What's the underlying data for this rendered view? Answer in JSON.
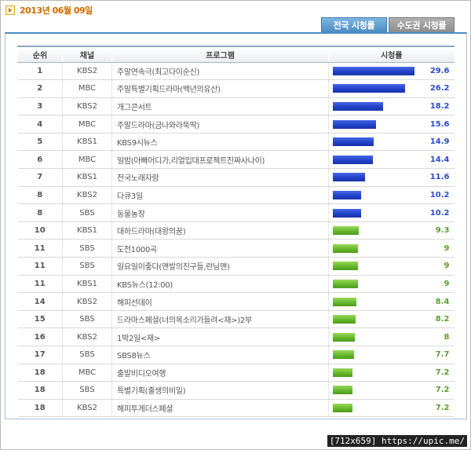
{
  "date_label": "2013년 06월 09일",
  "tabs": [
    {
      "label": "전국 시청률",
      "active": true
    },
    {
      "label": "수도권 시청률",
      "active": false
    }
  ],
  "table": {
    "headers": [
      "순위",
      "채널",
      "프로그램",
      "시청률"
    ],
    "max_rating": 29.6,
    "colors": {
      "top_bar": "#2a45cf",
      "rest_bar": "#62b52a",
      "top_text": "#2a4bcf",
      "rest_text": "#5aa12a"
    },
    "rows": [
      {
        "rank": "1",
        "channel": "KBS2",
        "program": "주말연속극(최고다이순신)",
        "rating": 29.6,
        "color": "blue"
      },
      {
        "rank": "2",
        "channel": "MBC",
        "program": "주말특별기획드라마(백년의유산)",
        "rating": 26.2,
        "color": "blue"
      },
      {
        "rank": "3",
        "channel": "KBS2",
        "program": "개그콘서트",
        "rating": 18.2,
        "color": "blue"
      },
      {
        "rank": "4",
        "channel": "MBC",
        "program": "주말드라마(금나와라뚝딱)",
        "rating": 15.6,
        "color": "blue"
      },
      {
        "rank": "5",
        "channel": "KBS1",
        "program": "KBS9시뉴스",
        "rating": 14.9,
        "color": "blue"
      },
      {
        "rank": "6",
        "channel": "MBC",
        "program": "일밤(아빠어디가,리얼입대프로젝트진짜사나이)",
        "rating": 14.4,
        "color": "blue"
      },
      {
        "rank": "7",
        "channel": "KBS1",
        "program": "전국노래자랑",
        "rating": 11.6,
        "color": "blue"
      },
      {
        "rank": "8",
        "channel": "KBS2",
        "program": "다큐3일",
        "rating": 10.2,
        "color": "blue"
      },
      {
        "rank": "8",
        "channel": "SBS",
        "program": "동물농장",
        "rating": 10.2,
        "color": "blue"
      },
      {
        "rank": "10",
        "channel": "KBS1",
        "program": "대하드라마(대왕의꿈)",
        "rating": 9.3,
        "color": "green"
      },
      {
        "rank": "11",
        "channel": "SBS",
        "program": "도전1000곡",
        "rating": 9,
        "color": "green"
      },
      {
        "rank": "11",
        "channel": "SBS",
        "program": "일요일이좋다(맨발의친구들,런닝맨)",
        "rating": 9,
        "color": "green"
      },
      {
        "rank": "11",
        "channel": "KBS1",
        "program": "KBS뉴스(12:00)",
        "rating": 9,
        "color": "green"
      },
      {
        "rank": "14",
        "channel": "KBS2",
        "program": "해피선데이",
        "rating": 8.4,
        "color": "green"
      },
      {
        "rank": "15",
        "channel": "SBS",
        "program": "드라마스페셜(너의목소리가들려<재>)2부",
        "rating": 8.2,
        "color": "green"
      },
      {
        "rank": "16",
        "channel": "KBS2",
        "program": "1박2일<재>",
        "rating": 8,
        "color": "green"
      },
      {
        "rank": "17",
        "channel": "SBS",
        "program": "SBS8뉴스",
        "rating": 7.7,
        "color": "green"
      },
      {
        "rank": "18",
        "channel": "MBC",
        "program": "출발비디오여행",
        "rating": 7.2,
        "color": "green"
      },
      {
        "rank": "18",
        "channel": "SBS",
        "program": "특별기획(출생의비밀)",
        "rating": 7.2,
        "color": "green"
      },
      {
        "rank": "18",
        "channel": "KBS2",
        "program": "해피투게더스페셜",
        "rating": 7.2,
        "color": "green"
      }
    ]
  },
  "watermark": "[712x659] https://upic.me/"
}
